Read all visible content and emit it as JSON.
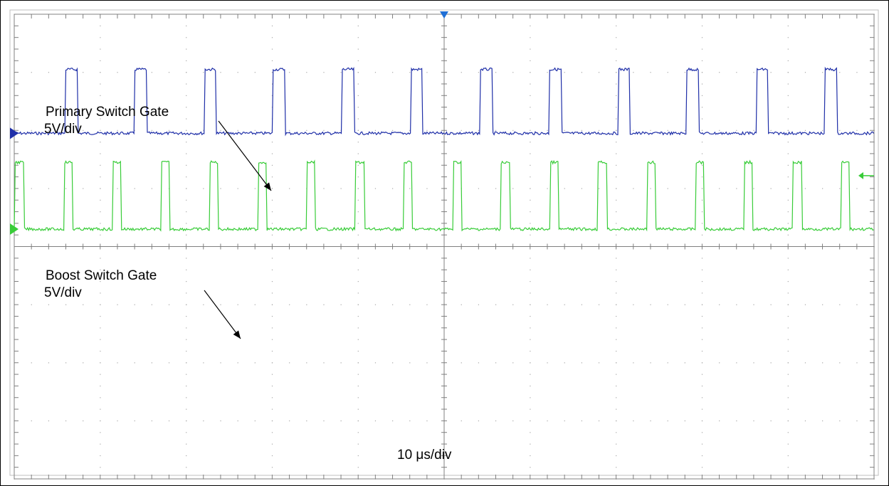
{
  "chart_data": {
    "type": "line",
    "title": "",
    "xlabel": "",
    "ylabel": "",
    "grid": true,
    "timebase_label": "10 μs/div",
    "x_divisions": 10,
    "y_divisions": 8,
    "xlim": [
      0,
      100
    ],
    "series": [
      {
        "name": "Primary Switch Gate",
        "scale_label": "5V/div",
        "color": "#1f2fa8",
        "baseline_div": 5.95,
        "pulse_amplitude_div": 1.1,
        "pulse_starts": [
          6.0,
          14.0,
          22.1,
          30.1,
          38.1,
          46.1,
          54.2,
          62.2,
          70.2,
          78.2,
          86.3,
          94.3
        ],
        "pulse_width": 1.4
      },
      {
        "name": "Boost Switch Gate",
        "scale_label": "5V/div",
        "color": "#38cc38",
        "baseline_div": 4.3,
        "pulse_amplitude_div": 1.15,
        "pulse_starts": [
          0.1,
          5.8,
          11.4,
          17.1,
          22.7,
          28.4,
          34.0,
          39.7,
          45.3,
          51.0,
          56.6,
          62.3,
          67.9,
          73.6,
          79.2,
          84.9,
          90.6,
          96.2
        ],
        "pulse_width": 1.0
      }
    ],
    "annotations": [
      {
        "lines": [
          "Primary Switch Gate",
          "5V/div"
        ],
        "points_to": "primary"
      },
      {
        "lines": [
          "Boost Switch Gate",
          "5V/div"
        ],
        "points_to": "boost"
      }
    ]
  },
  "colors": {
    "grid": "#a8a8a8",
    "center_axis": "#808080",
    "frame": "#000000",
    "trigger_marker": "#1f6fd6"
  }
}
